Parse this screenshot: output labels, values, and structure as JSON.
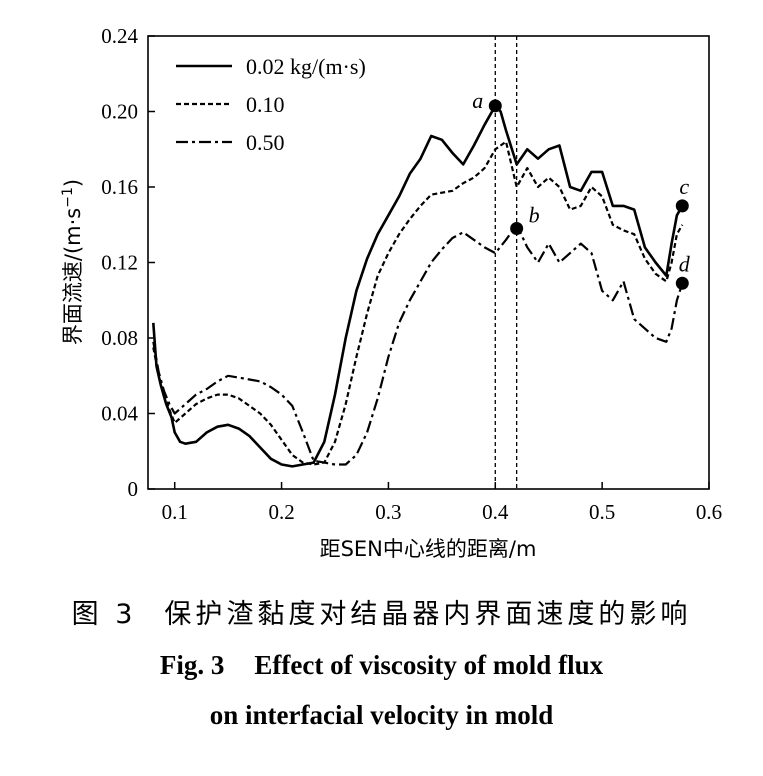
{
  "chart_data": {
    "type": "line",
    "xlabel": "距SEN中心线的距离/m",
    "ylabel_base": "界面流速/(m·s",
    "ylabel_sup": "−1",
    "ylabel_close": ")",
    "xlim": [
      0.075,
      0.6
    ],
    "ylim": [
      0,
      0.24
    ],
    "xticks": [
      0.1,
      0.2,
      0.3,
      0.4,
      0.5,
      0.6
    ],
    "xtick_labels": [
      "0.1",
      "0.2",
      "0.3",
      "0.4",
      "0.5",
      "0.6"
    ],
    "yticks": [
      0,
      0.04,
      0.08,
      0.12,
      0.16,
      0.2,
      0.24
    ],
    "ytick_labels": [
      "0",
      "0.04",
      "0.08",
      "0.12",
      "0.16",
      "0.20",
      "0.24"
    ],
    "legend_position": "top-left",
    "series": [
      {
        "name": "0.02 kg/(m·s)",
        "style": "solid",
        "x": [
          0.08,
          0.083,
          0.087,
          0.092,
          0.097,
          0.1,
          0.105,
          0.11,
          0.12,
          0.13,
          0.14,
          0.15,
          0.16,
          0.17,
          0.18,
          0.19,
          0.2,
          0.21,
          0.22,
          0.23,
          0.24,
          0.25,
          0.26,
          0.27,
          0.28,
          0.29,
          0.3,
          0.31,
          0.32,
          0.33,
          0.34,
          0.35,
          0.36,
          0.37,
          0.38,
          0.39,
          0.4,
          0.405,
          0.41,
          0.42,
          0.43,
          0.44,
          0.45,
          0.46,
          0.47,
          0.48,
          0.49,
          0.5,
          0.51,
          0.52,
          0.53,
          0.54,
          0.55,
          0.56,
          0.565,
          0.57,
          0.575
        ],
        "y": [
          0.088,
          0.065,
          0.055,
          0.045,
          0.038,
          0.03,
          0.025,
          0.024,
          0.025,
          0.03,
          0.033,
          0.034,
          0.032,
          0.028,
          0.022,
          0.016,
          0.013,
          0.012,
          0.013,
          0.014,
          0.025,
          0.05,
          0.08,
          0.105,
          0.122,
          0.135,
          0.145,
          0.155,
          0.167,
          0.175,
          0.187,
          0.185,
          0.178,
          0.172,
          0.182,
          0.193,
          0.203,
          0.2,
          0.19,
          0.172,
          0.18,
          0.175,
          0.18,
          0.182,
          0.16,
          0.158,
          0.168,
          0.168,
          0.15,
          0.15,
          0.148,
          0.128,
          0.12,
          0.113,
          0.13,
          0.145,
          0.15
        ]
      },
      {
        "name": "0.10",
        "style": "dotted",
        "x": [
          0.08,
          0.085,
          0.09,
          0.095,
          0.1,
          0.11,
          0.12,
          0.13,
          0.14,
          0.15,
          0.16,
          0.17,
          0.18,
          0.19,
          0.2,
          0.21,
          0.22,
          0.23,
          0.24,
          0.25,
          0.26,
          0.27,
          0.28,
          0.29,
          0.3,
          0.31,
          0.32,
          0.33,
          0.34,
          0.35,
          0.36,
          0.37,
          0.38,
          0.39,
          0.4,
          0.41,
          0.42,
          0.43,
          0.44,
          0.45,
          0.46,
          0.47,
          0.48,
          0.49,
          0.5,
          0.51,
          0.52,
          0.53,
          0.54,
          0.55,
          0.56,
          0.565,
          0.57,
          0.575
        ],
        "y": [
          0.075,
          0.06,
          0.05,
          0.042,
          0.035,
          0.04,
          0.045,
          0.048,
          0.05,
          0.05,
          0.048,
          0.044,
          0.04,
          0.034,
          0.026,
          0.018,
          0.014,
          0.013,
          0.014,
          0.025,
          0.045,
          0.07,
          0.093,
          0.113,
          0.125,
          0.135,
          0.143,
          0.15,
          0.156,
          0.157,
          0.158,
          0.162,
          0.165,
          0.17,
          0.18,
          0.184,
          0.16,
          0.17,
          0.16,
          0.165,
          0.16,
          0.148,
          0.15,
          0.16,
          0.155,
          0.14,
          0.137,
          0.135,
          0.122,
          0.114,
          0.11,
          0.12,
          0.135,
          0.14
        ]
      },
      {
        "name": "0.50",
        "style": "dash-dot",
        "x": [
          0.08,
          0.085,
          0.09,
          0.095,
          0.1,
          0.11,
          0.12,
          0.13,
          0.14,
          0.15,
          0.16,
          0.17,
          0.18,
          0.19,
          0.2,
          0.21,
          0.22,
          0.23,
          0.24,
          0.25,
          0.26,
          0.27,
          0.28,
          0.29,
          0.3,
          0.31,
          0.32,
          0.33,
          0.34,
          0.35,
          0.36,
          0.37,
          0.38,
          0.39,
          0.4,
          0.41,
          0.42,
          0.43,
          0.44,
          0.45,
          0.46,
          0.47,
          0.48,
          0.49,
          0.5,
          0.51,
          0.52,
          0.53,
          0.54,
          0.55,
          0.56,
          0.565,
          0.57,
          0.575
        ],
        "y": [
          0.078,
          0.062,
          0.052,
          0.045,
          0.04,
          0.045,
          0.05,
          0.053,
          0.057,
          0.06,
          0.059,
          0.058,
          0.057,
          0.054,
          0.05,
          0.044,
          0.03,
          0.015,
          0.014,
          0.013,
          0.013,
          0.018,
          0.03,
          0.048,
          0.07,
          0.088,
          0.1,
          0.11,
          0.12,
          0.127,
          0.133,
          0.136,
          0.132,
          0.128,
          0.125,
          0.132,
          0.14,
          0.128,
          0.12,
          0.13,
          0.12,
          0.125,
          0.13,
          0.125,
          0.105,
          0.1,
          0.11,
          0.09,
          0.085,
          0.08,
          0.078,
          0.085,
          0.1,
          0.109
        ]
      }
    ],
    "vlines": [
      0.4,
      0.42
    ],
    "points": [
      {
        "label": "a",
        "x": 0.4,
        "y": 0.203,
        "label_side": "left"
      },
      {
        "label": "b",
        "x": 0.42,
        "y": 0.138,
        "label_side": "right"
      },
      {
        "label": "c",
        "x": 0.575,
        "y": 0.15,
        "label_side": "above"
      },
      {
        "label": "d",
        "x": 0.575,
        "y": 0.109,
        "label_side": "above"
      }
    ]
  },
  "caption": {
    "cn_fig": "图 3",
    "cn_text": "保护渣黏度对结晶器内界面速度的影响",
    "en_fig": "Fig. 3",
    "en_line1": "Effect of viscosity of mold flux",
    "en_line2": "on interfacial velocity in mold"
  }
}
